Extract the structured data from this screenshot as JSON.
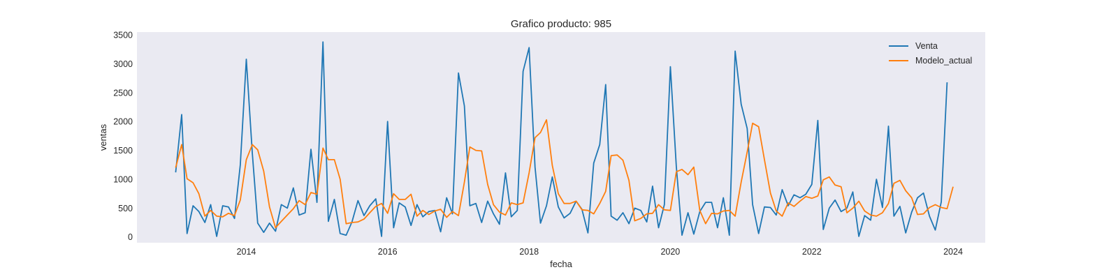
{
  "chart_data": {
    "type": "line",
    "title": "Grafico producto: 985",
    "xlabel": "fecha",
    "ylabel": "ventas",
    "x_start": "2013-01",
    "xlim": [
      "2012-06-15",
      "2024-06-15"
    ],
    "ylim": [
      -100,
      3550
    ],
    "xticks": [
      {
        "date": "2014-01-01",
        "label": "2014"
      },
      {
        "date": "2016-01-01",
        "label": "2016"
      },
      {
        "date": "2018-01-01",
        "label": "2018"
      },
      {
        "date": "2020-01-01",
        "label": "2020"
      },
      {
        "date": "2022-01-01",
        "label": "2022"
      },
      {
        "date": "2024-01-01",
        "label": "2024"
      }
    ],
    "yticks": [
      0,
      500,
      1000,
      1500,
      2000,
      2500,
      3000,
      3500
    ],
    "grid": false,
    "legend": "top-right",
    "colors": {
      "plot_background": "#eaeaf2",
      "Venta": "#1f77b4",
      "Modelo_actual": "#ff7f0e"
    },
    "series": [
      {
        "name": "Venta",
        "color": "#1f77b4",
        "values": [
          1120,
          2120,
          60,
          540,
          440,
          250,
          560,
          10,
          540,
          520,
          320,
          1250,
          3080,
          1450,
          240,
          80,
          240,
          100,
          560,
          500,
          850,
          380,
          420,
          1520,
          600,
          3380,
          270,
          650,
          60,
          30,
          260,
          630,
          370,
          540,
          660,
          10,
          2000,
          160,
          590,
          520,
          200,
          560,
          350,
          440,
          460,
          90,
          680,
          400,
          2840,
          2270,
          540,
          580,
          250,
          620,
          400,
          220,
          1110,
          350,
          460,
          2870,
          3280,
          1210,
          240,
          540,
          1040,
          520,
          330,
          410,
          620,
          480,
          70,
          1280,
          1600,
          2640,
          360,
          290,
          420,
          230,
          500,
          460,
          260,
          880,
          160,
          560,
          2950,
          1220,
          30,
          420,
          50,
          440,
          600,
          600,
          160,
          680,
          30,
          3220,
          2300,
          1880,
          560,
          60,
          520,
          510,
          380,
          820,
          540,
          730,
          680,
          740,
          910,
          2020,
          130,
          500,
          640,
          440,
          500,
          780,
          10,
          370,
          290,
          1000,
          510,
          1920,
          360,
          530,
          70,
          430,
          680,
          760,
          360,
          120,
          610,
          2680
        ]
      },
      {
        "name": "Modelo_actual",
        "color": "#ff7f0e",
        "values": [
          1200,
          1600,
          1010,
          940,
          750,
          360,
          460,
          360,
          350,
          410,
          370,
          640,
          1340,
          1600,
          1510,
          1140,
          520,
          160,
          270,
          380,
          490,
          630,
          560,
          770,
          740,
          1540,
          1340,
          1340,
          1000,
          230,
          250,
          260,
          310,
          420,
          530,
          580,
          410,
          750,
          650,
          650,
          740,
          360,
          460,
          390,
          450,
          480,
          340,
          440,
          370,
          950,
          1560,
          1500,
          1490,
          910,
          560,
          430,
          380,
          590,
          560,
          590,
          1110,
          1720,
          1810,
          2030,
          1240,
          750,
          580,
          580,
          620,
          470,
          460,
          400,
          580,
          790,
          1410,
          1420,
          1330,
          980,
          280,
          320,
          400,
          410,
          560,
          470,
          460,
          1130,
          1170,
          1080,
          1210,
          460,
          230,
          410,
          400,
          450,
          460,
          360,
          950,
          1470,
          1970,
          1910,
          1340,
          760,
          450,
          360,
          590,
          530,
          620,
          700,
          670,
          710,
          990,
          1040,
          900,
          870,
          420,
          500,
          620,
          450,
          380,
          360,
          420,
          580,
          930,
          980,
          800,
          680,
          390,
          400,
          510,
          560,
          510,
          490,
          870
        ]
      }
    ]
  }
}
